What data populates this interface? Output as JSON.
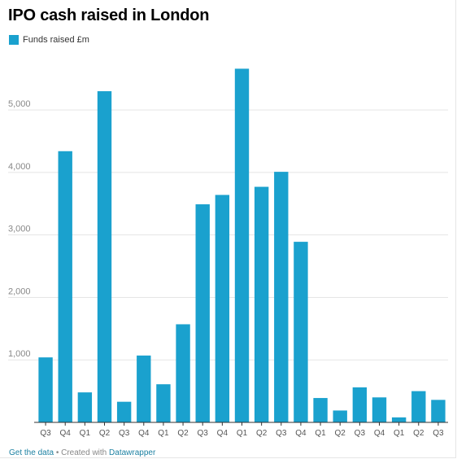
{
  "chart_data": {
    "type": "bar",
    "title": "IPO cash raised in London",
    "legend": {
      "label": "Funds raised £m",
      "color": "#1aa1ce",
      "placement": "top-left"
    },
    "categories": [
      "Q3",
      "Q4",
      "Q1",
      "Q2",
      "Q3",
      "Q4",
      "Q1",
      "Q2",
      "Q3",
      "Q4",
      "Q1",
      "Q2",
      "Q3",
      "Q4",
      "Q1",
      "Q2",
      "Q3",
      "Q4",
      "Q1",
      "Q2",
      "Q3"
    ],
    "series": [
      {
        "name": "Funds raised £m",
        "values": [
          1040,
          4340,
          480,
          5300,
          330,
          1070,
          610,
          1570,
          3490,
          3640,
          5660,
          3770,
          4010,
          2890,
          390,
          190,
          560,
          400,
          80,
          500,
          360
        ]
      }
    ],
    "ylim": [
      0,
      5900
    ],
    "yticks": [
      1000,
      2000,
      3000,
      4000,
      5000
    ],
    "ytick_labels": [
      "1,000",
      "2,000",
      "3,000",
      "4,000",
      "5,000"
    ],
    "grid": true,
    "xlabel": "",
    "ylabel": ""
  },
  "footer": {
    "get_data": "Get the data",
    "separator": " • Created with ",
    "credit": "Datawrapper"
  }
}
